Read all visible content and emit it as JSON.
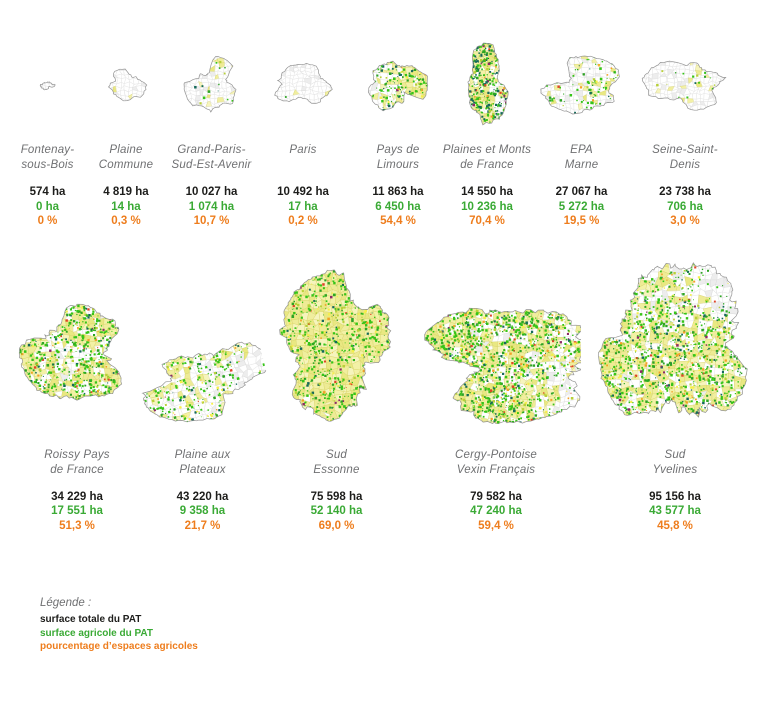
{
  "colors": {
    "total": "#1d1d1b",
    "agri": "#3aaa35",
    "pct": "#ee7d1d",
    "name_text": "#6f7072"
  },
  "territories": [
    {
      "name": [
        "Fontenay-",
        "sous-Bois"
      ],
      "total": "574 ha",
      "agri": "0 ha",
      "pct": "0 %"
    },
    {
      "name": [
        "Plaine",
        "Commune"
      ],
      "total": "4 819 ha",
      "agri": "14 ha",
      "pct": "0,3 %"
    },
    {
      "name": [
        "Grand-Paris-",
        "Sud-Est-Avenir"
      ],
      "total": "10 027 ha",
      "agri": "1 074 ha",
      "pct": "10,7 %"
    },
    {
      "name": [
        "Paris"
      ],
      "total": "10 492 ha",
      "agri": "17 ha",
      "pct": "0,2 %"
    },
    {
      "name": [
        "Pays de",
        "Limours"
      ],
      "total": "11 863 ha",
      "agri": "6 450 ha",
      "pct": "54,4 %"
    },
    {
      "name": [
        "Plaines et Monts",
        "de France"
      ],
      "total": "14 550 ha",
      "agri": "10 236 ha",
      "pct": "70,4 %"
    },
    {
      "name": [
        "EPA",
        "Marne"
      ],
      "total": "27 067 ha",
      "agri": "5 272 ha",
      "pct": "19,5 %"
    },
    {
      "name": [
        "Seine-Saint-",
        "Denis"
      ],
      "total": "23 738 ha",
      "agri": "706 ha",
      "pct": "3,0 %"
    },
    {
      "name": [
        "Roissy Pays",
        "de France"
      ],
      "total": "34 229 ha",
      "agri": "17 551 ha",
      "pct": "51,3 %"
    },
    {
      "name": [
        "Plaine aux",
        "Plateaux"
      ],
      "total": "43 220 ha",
      "agri": "9 358 ha",
      "pct": "21,7 %"
    },
    {
      "name": [
        "Sud",
        "Essonne"
      ],
      "total": "75 598 ha",
      "agri": "52 140 ha",
      "pct": "69,0 %"
    },
    {
      "name": [
        "Cergy-Pontoise",
        "Vexin Français"
      ],
      "total": "79 582 ha",
      "agri": "47 240 ha",
      "pct": "59,4 %"
    },
    {
      "name": [
        "Sud",
        "Yvelines"
      ],
      "total": "95 156 ha",
      "agri": "43 577 ha",
      "pct": "45,8 %"
    }
  ],
  "legend": {
    "title": "Légende :",
    "items": [
      "surface totale du PAT",
      "surface agricole du PAT",
      "pourcentage d’espaces agricoles"
    ]
  },
  "chart_data": {
    "type": "table",
    "title": "Surfaces agricoles des PAT d’Île-de-France",
    "categories": [
      "Fontenay-sous-Bois",
      "Plaine Commune",
      "Grand-Paris-Sud-Est-Avenir",
      "Paris",
      "Pays de Limours",
      "Plaines et Monts de France",
      "EPA Marne",
      "Seine-Saint-Denis",
      "Roissy Pays de France",
      "Plaine aux Plateaux",
      "Sud Essonne",
      "Cergy-Pontoise Vexin Français",
      "Sud Yvelines"
    ],
    "series": [
      {
        "name": "surface totale du PAT (ha)",
        "values": [
          574,
          4819,
          10027,
          10492,
          11863,
          14550,
          27067,
          23738,
          34229,
          43220,
          75598,
          79582,
          95156
        ]
      },
      {
        "name": "surface agricole du PAT (ha)",
        "values": [
          0,
          14,
          1074,
          17,
          6450,
          10236,
          5272,
          706,
          17551,
          9358,
          52140,
          47240,
          43577
        ]
      },
      {
        "name": "pourcentage d’espaces agricoles (%)",
        "values": [
          0,
          0.3,
          10.7,
          0.2,
          54.4,
          70.4,
          19.5,
          3.0,
          51.3,
          21.7,
          69.0,
          59.4,
          45.8
        ]
      }
    ]
  }
}
